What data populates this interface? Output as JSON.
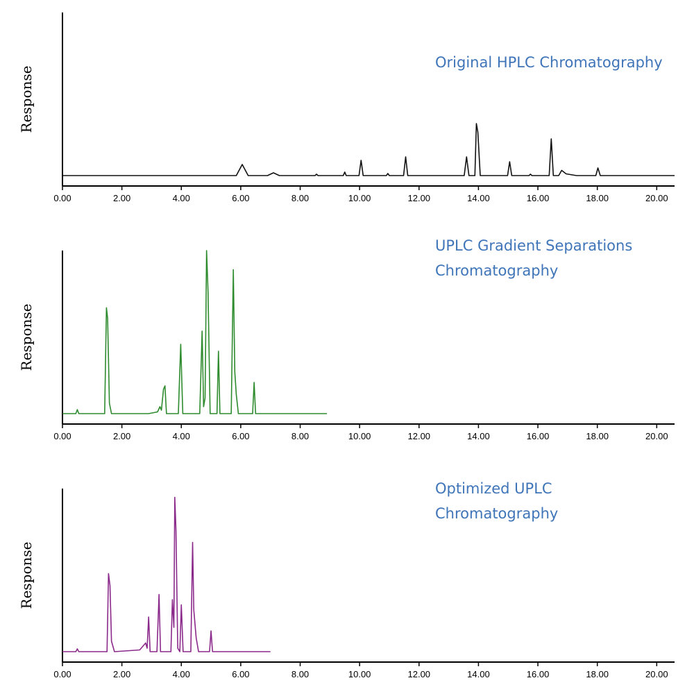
{
  "chart_data": [
    {
      "type": "line",
      "title": "Original HPLC Chromatography",
      "ylabel": "Response",
      "color": "#111111",
      "xlim": [
        0,
        20.6
      ],
      "ylim": [
        0,
        100
      ],
      "xticks": [
        {
          "value": 0,
          "label": "0.00"
        },
        {
          "value": 2,
          "label": "2.00"
        },
        {
          "value": 4,
          "label": "4.00"
        },
        {
          "value": 6,
          "label": "6.00"
        },
        {
          "value": 8,
          "label": "8.00"
        },
        {
          "value": 10,
          "label": "10.00"
        },
        {
          "value": 12,
          "label": "12.00"
        },
        {
          "value": 14,
          "label": "14.00"
        },
        {
          "value": 16,
          "label": "16.00"
        },
        {
          "value": 18,
          "label": "18.00"
        },
        {
          "value": 20,
          "label": "20.00"
        }
      ],
      "x": [
        0,
        5.85,
        6.05,
        6.25,
        6.9,
        7.1,
        7.3,
        8.5,
        8.55,
        8.6,
        9.45,
        9.5,
        9.55,
        9.98,
        10.05,
        10.12,
        10.9,
        10.95,
        11.0,
        11.48,
        11.55,
        11.62,
        13.52,
        13.6,
        13.68,
        13.88,
        13.93,
        13.98,
        14.06,
        14.98,
        15.05,
        15.12,
        15.7,
        15.75,
        15.8,
        16.38,
        16.45,
        16.52,
        16.7,
        16.8,
        16.95,
        17.3,
        17.95,
        18.02,
        18.1,
        20.6
      ],
      "values": [
        6,
        6,
        12.4,
        6,
        6,
        7.6,
        6,
        6,
        6.8,
        6,
        6,
        8,
        6,
        6,
        14.8,
        6,
        6,
        7.2,
        6,
        6,
        16.8,
        6,
        6,
        16.8,
        6,
        6,
        36,
        31,
        6,
        6,
        14,
        6,
        6,
        6.8,
        6,
        6,
        27.2,
        6,
        6,
        9,
        7,
        6,
        6,
        10.4,
        6,
        6
      ]
    },
    {
      "type": "line",
      "title": "UPLC Gradient Separations Chromatography",
      "ylabel": "Response",
      "color": "#2e8b2e",
      "xlim": [
        0,
        20.6
      ],
      "ylim": [
        0,
        100
      ],
      "xticks": [
        {
          "value": 0,
          "label": "0.00"
        },
        {
          "value": 2,
          "label": "2.00"
        },
        {
          "value": 4,
          "label": "4.00"
        },
        {
          "value": 6,
          "label": "6.00"
        },
        {
          "value": 8,
          "label": "8.00"
        },
        {
          "value": 10,
          "label": "10.00"
        },
        {
          "value": 12,
          "label": "12.00"
        },
        {
          "value": 14,
          "label": "14.00"
        },
        {
          "value": 16,
          "label": "16.00"
        },
        {
          "value": 18,
          "label": "18.00"
        },
        {
          "value": 20,
          "label": "20.00"
        }
      ],
      "x": [
        0,
        0.45,
        0.5,
        0.55,
        1.42,
        1.48,
        1.52,
        1.58,
        1.65,
        2.9,
        3.2,
        3.28,
        3.33,
        3.4,
        3.45,
        3.5,
        3.9,
        3.98,
        4.05,
        4.62,
        4.7,
        4.75,
        4.8,
        4.85,
        4.9,
        4.97,
        5.2,
        5.25,
        5.3,
        5.68,
        5.75,
        5.8,
        5.85,
        5.92,
        6.4,
        6.45,
        6.5,
        8.9
      ],
      "values": [
        6,
        6,
        8.3,
        6,
        6,
        67,
        61,
        12,
        6,
        6,
        7,
        10,
        8,
        20,
        22,
        6,
        6,
        46,
        6,
        6,
        53.6,
        10,
        15,
        100,
        76,
        6,
        6,
        42,
        6,
        6,
        89,
        30,
        17,
        6,
        6,
        24,
        6,
        6
      ]
    },
    {
      "type": "line",
      "title": "Optimized UPLC Chromatography",
      "ylabel": "Response",
      "color": "#8b2a8b",
      "xlim": [
        0,
        20.6
      ],
      "ylim": [
        0,
        100
      ],
      "xticks": [
        {
          "value": 0,
          "label": "0.00"
        },
        {
          "value": 2,
          "label": "2.00"
        },
        {
          "value": 4,
          "label": "4.00"
        },
        {
          "value": 6,
          "label": "6.00"
        },
        {
          "value": 8,
          "label": "8.00"
        },
        {
          "value": 10,
          "label": "10.00"
        },
        {
          "value": 12,
          "label": "12.00"
        },
        {
          "value": 14,
          "label": "14.00"
        },
        {
          "value": 16,
          "label": "16.00"
        },
        {
          "value": 18,
          "label": "18.00"
        },
        {
          "value": 20,
          "label": "20.00"
        }
      ],
      "x": [
        0,
        0.45,
        0.5,
        0.55,
        1.5,
        1.55,
        1.6,
        1.65,
        1.75,
        2.6,
        2.8,
        2.85,
        2.9,
        2.95,
        3.18,
        3.25,
        3.3,
        3.65,
        3.7,
        3.75,
        3.78,
        3.82,
        3.88,
        3.95,
        4.0,
        4.06,
        4.32,
        4.38,
        4.42,
        4.5,
        4.58,
        4.95,
        5.0,
        5.05,
        5.5,
        7.0
      ],
      "values": [
        6,
        6,
        7.6,
        6,
        6,
        51,
        44,
        12,
        6,
        7,
        11,
        8,
        26,
        6,
        6,
        39,
        6,
        6,
        36,
        20,
        95,
        76,
        8,
        6,
        33,
        6,
        6,
        69,
        30,
        14,
        6,
        6,
        18,
        6,
        6,
        6
      ]
    }
  ]
}
